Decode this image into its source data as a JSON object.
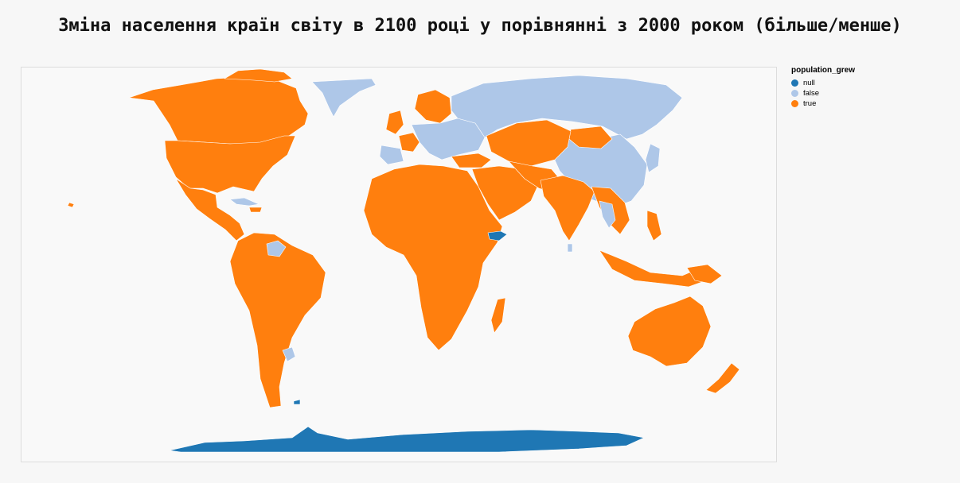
{
  "title": "Зміна населення країн світу в 2100 році у порівнянні з 2000 роком (більше/менше)",
  "legend": {
    "title": "population_grew",
    "items": [
      {
        "label": "null",
        "color": "#1f77b4"
      },
      {
        "label": "false",
        "color": "#aec7e8"
      },
      {
        "label": "true",
        "color": "#ff7f0e"
      }
    ]
  },
  "map": {
    "projection": "equirectangular world map",
    "fill_by": "population_grew",
    "regions": [
      {
        "region": "North America (Canada, USA, Mexico, Central America)",
        "population_grew": "true"
      },
      {
        "region": "Greenland",
        "population_grew": "false"
      },
      {
        "region": "Cuba, Jamaica, Puerto Rico",
        "population_grew": "false"
      },
      {
        "region": "Haiti / Dominican Republic",
        "population_grew": "true"
      },
      {
        "region": "South America",
        "population_grew": "true"
      },
      {
        "region": "Guyana / Suriname",
        "population_grew": "false"
      },
      {
        "region": "Uruguay",
        "population_grew": "false"
      },
      {
        "region": "Northern Europe (Norway, Sweden, Finland, UK, Ireland, France)",
        "population_grew": "true"
      },
      {
        "region": "Central, Southern & Eastern Europe",
        "population_grew": "false"
      },
      {
        "region": "Russia",
        "population_grew": "false"
      },
      {
        "region": "China, Korea, Japan",
        "population_grew": "false"
      },
      {
        "region": "Mongolia, Central Asia, Middle East",
        "population_grew": "true"
      },
      {
        "region": "South Asia & Southeast Asia",
        "population_grew": "true"
      },
      {
        "region": "Thailand",
        "population_grew": "false"
      },
      {
        "region": "Sri Lanka",
        "population_grew": "false"
      },
      {
        "region": "Africa",
        "population_grew": "true"
      },
      {
        "region": "Somaliland",
        "population_grew": "null"
      },
      {
        "region": "Australia & Oceania",
        "population_grew": "true"
      },
      {
        "region": "Antarctica",
        "population_grew": "null"
      }
    ]
  }
}
